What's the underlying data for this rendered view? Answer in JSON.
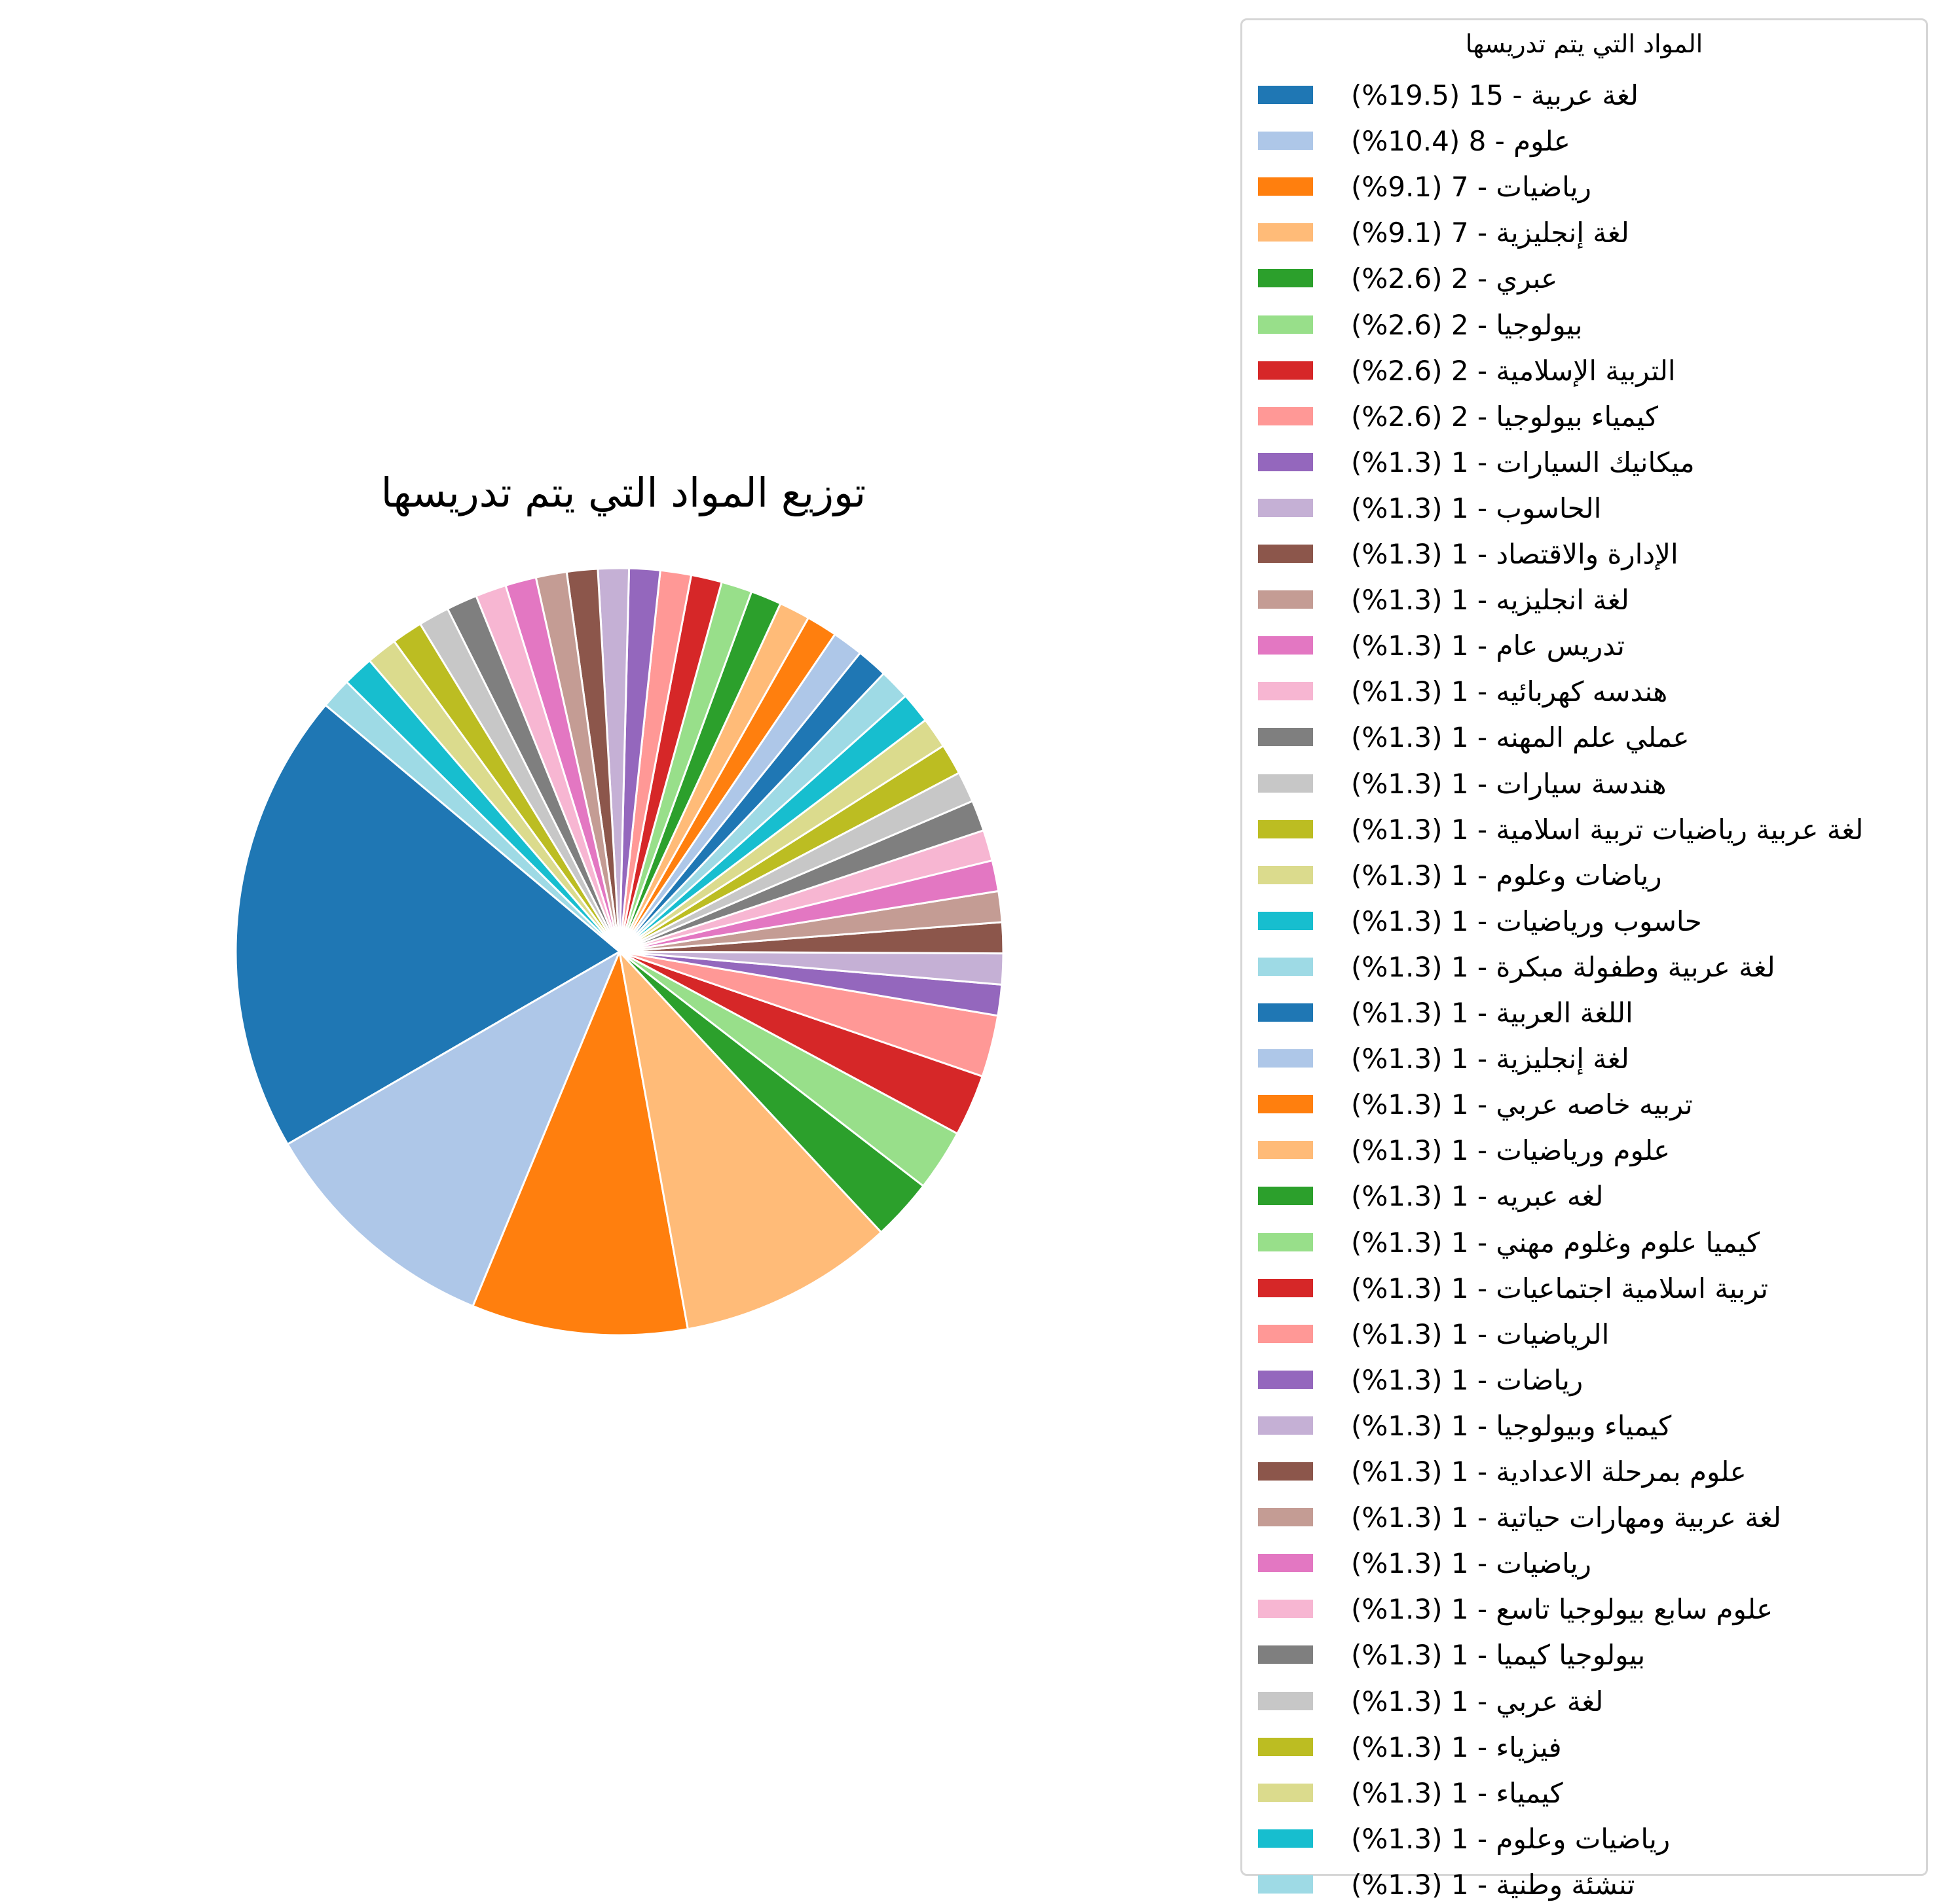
{
  "chart_data": {
    "type": "pie",
    "title": "توزيع المواد التي يتم تدريسها",
    "legend_title": "المواد التي يتم تدريسها",
    "legend_placement": "right",
    "slices": [
      {
        "label": "لغة عربية",
        "value": 15,
        "percent": "19.5%",
        "color": "#1f77b4",
        "legend_text": "لغة عربية - 15 (19.5%)"
      },
      {
        "label": "علوم",
        "value": 8,
        "percent": "10.4%",
        "color": "#aec7e8",
        "legend_text": "علوم - 8 (10.4%)"
      },
      {
        "label": "رياضيات",
        "value": 7,
        "percent": "9.1%",
        "color": "#ff7f0e",
        "legend_text": "رياضيات - 7 (9.1%)"
      },
      {
        "label": "لغة إنجليزية",
        "value": 7,
        "percent": "9.1%",
        "color": "#ffbb78",
        "legend_text": "لغة إنجليزية - 7 (9.1%)"
      },
      {
        "label": "عبري",
        "value": 2,
        "percent": "2.6%",
        "color": "#2ca02c",
        "legend_text": "عبري - 2 (2.6%)"
      },
      {
        "label": "بيولوجيا",
        "value": 2,
        "percent": "2.6%",
        "color": "#98df8a",
        "legend_text": "بيولوجيا - 2 (2.6%)"
      },
      {
        "label": "التربية الإسلامية",
        "value": 2,
        "percent": "2.6%",
        "color": "#d62728",
        "legend_text": "التربية الإسلامية - 2 (2.6%)"
      },
      {
        "label": "كيمياء بيولوجيا",
        "value": 2,
        "percent": "2.6%",
        "color": "#ff9896",
        "legend_text": "كيمياء بيولوجيا - 2 (2.6%)"
      },
      {
        "label": "ميكانيك السيارات",
        "value": 1,
        "percent": "1.3%",
        "color": "#9467bd",
        "legend_text": "ميكانيك السيارات - 1 (1.3%)"
      },
      {
        "label": "الحاسوب",
        "value": 1,
        "percent": "1.3%",
        "color": "#c5b0d5",
        "legend_text": "الحاسوب - 1 (1.3%)"
      },
      {
        "label": "الإدارة والاقتصاد",
        "value": 1,
        "percent": "1.3%",
        "color": "#8c564b",
        "legend_text": "الإدارة والاقتصاد - 1 (1.3%)"
      },
      {
        "label": "لغة انجليزيه",
        "value": 1,
        "percent": "1.3%",
        "color": "#c49c94",
        "legend_text": "لغة انجليزيه - 1 (1.3%)"
      },
      {
        "label": "تدريس عام",
        "value": 1,
        "percent": "1.3%",
        "color": "#e377c2",
        "legend_text": "تدريس عام - 1 (1.3%)"
      },
      {
        "label": "هندسه كهربائيه",
        "value": 1,
        "percent": "1.3%",
        "color": "#f7b6d2",
        "legend_text": "هندسه كهربائيه - 1 (1.3%)"
      },
      {
        "label": "عملي علم المهنه",
        "value": 1,
        "percent": "1.3%",
        "color": "#7f7f7f",
        "legend_text": "عملي علم المهنه - 1 (1.3%)"
      },
      {
        "label": "هندسة سيارات",
        "value": 1,
        "percent": "1.3%",
        "color": "#c7c7c7",
        "legend_text": "هندسة سيارات - 1 (1.3%)"
      },
      {
        "label": "لغة عربية  رياضيات  تربية اسلامية",
        "value": 1,
        "percent": "1.3%",
        "color": "#bcbd22",
        "legend_text": "لغة عربية  رياضيات  تربية اسلامية - 1 (1.3%)"
      },
      {
        "label": "رياضات وعلوم",
        "value": 1,
        "percent": "1.3%",
        "color": "#dbdb8d",
        "legend_text": "رياضات وعلوم - 1 (1.3%)"
      },
      {
        "label": "حاسوب ورياضيات",
        "value": 1,
        "percent": "1.3%",
        "color": "#17becf",
        "legend_text": "حاسوب ورياضيات - 1 (1.3%)"
      },
      {
        "label": "لغة عربية وطفولة مبكرة",
        "value": 1,
        "percent": "1.3%",
        "color": "#9edae5",
        "legend_text": "لغة عربية وطفولة مبكرة - 1 (1.3%)"
      },
      {
        "label": "اللغة العربية",
        "value": 1,
        "percent": "1.3%",
        "color": "#1f77b4",
        "legend_text": "اللغة العربية - 1 (1.3%)"
      },
      {
        "label": "لغة إنجليزية",
        "value": 1,
        "percent": "1.3%",
        "color": "#aec7e8",
        "legend_text": "لغة إنجليزية - 1 (1.3%)"
      },
      {
        "label": "تربيه خاصه عربي",
        "value": 1,
        "percent": "1.3%",
        "color": "#ff7f0e",
        "legend_text": "تربيه خاصه عربي - 1 (1.3%)"
      },
      {
        "label": "علوم ورياضيات",
        "value": 1,
        "percent": "1.3%",
        "color": "#ffbb78",
        "legend_text": "علوم ورياضيات - 1 (1.3%)"
      },
      {
        "label": "لغه عبريه",
        "value": 1,
        "percent": "1.3%",
        "color": "#2ca02c",
        "legend_text": "لغه عبريه - 1 (1.3%)"
      },
      {
        "label": "كيميا علوم وغلوم مهني",
        "value": 1,
        "percent": "1.3%",
        "color": "#98df8a",
        "legend_text": "كيميا علوم وغلوم مهني - 1 (1.3%)"
      },
      {
        "label": "تربية اسلامية اجتماعيات",
        "value": 1,
        "percent": "1.3%",
        "color": "#d62728",
        "legend_text": "تربية اسلامية اجتماعيات - 1 (1.3%)"
      },
      {
        "label": "الرياضيات",
        "value": 1,
        "percent": "1.3%",
        "color": "#ff9896",
        "legend_text": "الرياضيات - 1 (1.3%)"
      },
      {
        "label": "رياضات",
        "value": 1,
        "percent": "1.3%",
        "color": "#9467bd",
        "legend_text": "رياضات - 1 (1.3%)"
      },
      {
        "label": "كيمياء وبيولوجيا",
        "value": 1,
        "percent": "1.3%",
        "color": "#c5b0d5",
        "legend_text": "كيمياء وبيولوجيا - 1 (1.3%)"
      },
      {
        "label": "علوم بمرحلة الاعدادية",
        "value": 1,
        "percent": "1.3%",
        "color": "#8c564b",
        "legend_text": "علوم بمرحلة الاعدادية - 1 (1.3%)"
      },
      {
        "label": "لغة عربية ومهارات حياتية",
        "value": 1,
        "percent": "1.3%",
        "color": "#c49c94",
        "legend_text": "لغة عربية ومهارات حياتية - 1 (1.3%)"
      },
      {
        "label": "رياضيات",
        "value": 1,
        "percent": "1.3%",
        "color": "#e377c2",
        "legend_text": "رياضيات - 1 (1.3%)"
      },
      {
        "label": "علوم سابع بيولوجيا تاسع",
        "value": 1,
        "percent": "1.3%",
        "color": "#f7b6d2",
        "legend_text": "علوم سابع بيولوجيا تاسع - 1 (1.3%)"
      },
      {
        "label": "بيولوجيا كيميا",
        "value": 1,
        "percent": "1.3%",
        "color": "#7f7f7f",
        "legend_text": "بيولوجيا كيميا - 1 (1.3%)"
      },
      {
        "label": "لغة عربي",
        "value": 1,
        "percent": "1.3%",
        "color": "#c7c7c7",
        "legend_text": "لغة عربي - 1 (1.3%)"
      },
      {
        "label": "فيزياء",
        "value": 1,
        "percent": "1.3%",
        "color": "#bcbd22",
        "legend_text": "فيزياء - 1 (1.3%)"
      },
      {
        "label": "كيمياء",
        "value": 1,
        "percent": "1.3%",
        "color": "#dbdb8d",
        "legend_text": "كيمياء - 1 (1.3%)"
      },
      {
        "label": "رياضيات وعلوم",
        "value": 1,
        "percent": "1.3%",
        "color": "#17becf",
        "legend_text": "رياضيات وعلوم - 1 (1.3%)"
      },
      {
        "label": "تنشئة وطنية",
        "value": 1,
        "percent": "1.3%",
        "color": "#9edae5",
        "legend_text": "تنشئة وطنية - 1 (1.3%)"
      }
    ],
    "start_angle_deg": 140,
    "direction": "counterclockwise",
    "wedge_edge_color": "#ffffff"
  }
}
